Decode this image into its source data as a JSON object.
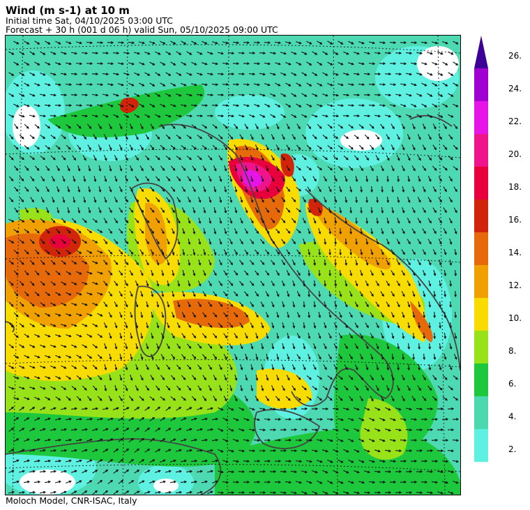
{
  "header": {
    "title": "Wind (m s-1) at 10 m",
    "initial": "Initial time  Sat, 04/10/2025  03:00 UTC",
    "forecast": "Forecast  +  30 h  (001 d 06 h)  valid Sun, 05/10/2025 09:00 UTC"
  },
  "credit": "Moloch Model, CNR-ISAC, Italy",
  "colorbar": {
    "ticks": [
      "2.",
      "4.",
      "6.",
      "8.",
      "10.",
      "12.",
      "14.",
      "16.",
      "18.",
      "20.",
      "22.",
      "24.",
      "26."
    ],
    "colors": [
      "#5ef0e0",
      "#4cd9b0",
      "#1ec83c",
      "#98e21a",
      "#f8dc00",
      "#f0a000",
      "#e66a0a",
      "#d2240a",
      "#e8003c",
      "#f0148c",
      "#e614e6",
      "#a000d2",
      "#3c0096"
    ]
  }
}
